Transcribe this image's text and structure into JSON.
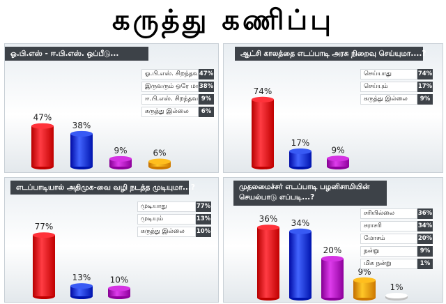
{
  "page_title": "கருத்து கணிப்பு",
  "colors": {
    "red": "#e8141c",
    "blue": "#1a3cd6",
    "purple": "#b614c4",
    "orange": "#f5a000",
    "white": "#e8e8e8"
  },
  "chart_data": [
    {
      "type": "bar",
      "title": "ஓ.பி.எஸ் - ஈ.பி.எஸ். ஒப்பீடு...",
      "categories": [
        "ஓ.பி.எஸ். சிறந்தவர்",
        "இருவரும் ஒரே மாதிரி",
        "ஈ.பி.எஸ். சிறந்தவர்",
        "கருத்து இல்லை"
      ],
      "values": [
        47,
        38,
        9,
        6
      ],
      "value_labels": [
        "47%",
        "38%",
        "9%",
        "6%"
      ],
      "colors": [
        "red",
        "blue",
        "purple",
        "orange"
      ],
      "ylim": [
        0,
        100
      ]
    },
    {
      "type": "bar",
      "title": "ஆட்சி காலத்தை எடப்பாடி அரசு நிறைவு செய்யுமா....?",
      "categories": [
        "செய்யாது",
        "செய்யும்",
        "கருத்து இல்லை"
      ],
      "values": [
        74,
        17,
        9
      ],
      "value_labels": [
        "74%",
        "17%",
        "9%"
      ],
      "colors": [
        "red",
        "blue",
        "purple"
      ],
      "ylim": [
        0,
        100
      ]
    },
    {
      "type": "bar",
      "title": "எடப்பாடியால் அதிமுக-வை வழி நடத்த முடியுமா...?",
      "categories": [
        "முடியாது",
        "முடியும்",
        "கருத்து இல்லை"
      ],
      "values": [
        77,
        13,
        10
      ],
      "value_labels": [
        "77%",
        "13%",
        "10%"
      ],
      "colors": [
        "red",
        "blue",
        "purple"
      ],
      "ylim": [
        0,
        100
      ]
    },
    {
      "type": "bar",
      "title": "முதலமைச்சர் எடப்பாடி பழனிசாமியின் செயல்பாடு எப்படி...?",
      "categories": [
        "சரியில்லை",
        "சராசரி",
        "மோசம்",
        "நன்று",
        "மிக நன்று"
      ],
      "values": [
        36,
        34,
        20,
        9,
        1
      ],
      "value_labels": [
        "36%",
        "34%",
        "20%",
        "9%",
        "1%"
      ],
      "colors": [
        "red",
        "blue",
        "purple",
        "orange",
        "white"
      ],
      "ylim": [
        0,
        40
      ]
    }
  ]
}
